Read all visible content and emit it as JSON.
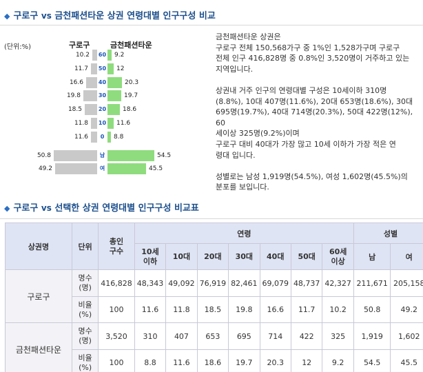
{
  "section1": {
    "title_a": "구로구",
    "title_vs": "vs",
    "title_b": "금천패션타운 상권 연령대별 인구구성 비교"
  },
  "pyramid": {
    "unit_label": "(단위:%)",
    "left_label": "구로구",
    "right_label": "금천패션타운",
    "colors": {
      "left": "#c9c9c9",
      "right": "#8fdc7e",
      "category": "#1a55b8"
    },
    "rows": [
      {
        "cat": "60",
        "left": "10.2",
        "right": "9.2"
      },
      {
        "cat": "50",
        "left": "11.7",
        "right": "12"
      },
      {
        "cat": "40",
        "left": "16.6",
        "right": "20.3"
      },
      {
        "cat": "30",
        "left": "19.8",
        "right": "19.7"
      },
      {
        "cat": "20",
        "left": "18.5",
        "right": "18.6"
      },
      {
        "cat": "10",
        "left": "11.8",
        "right": "11.6"
      },
      {
        "cat": "0",
        "left": "11.6",
        "right": "8.8"
      },
      {
        "cat": "남",
        "left": "50.8",
        "right": "54.5"
      },
      {
        "cat": "여",
        "left": "49.2",
        "right": "45.5"
      }
    ]
  },
  "description": {
    "lines": [
      "금천패션타운 상권은",
      "구로구 전체 150,568가구 중 1%인 1,528가구며 구로구",
      "전체 인구 416,828명 중 0.8%인 3,520명이 거주하고 있는",
      "지역입니다.",
      "",
      "상권내 거주 인구의 연령대별 구성은 10세이하 310명",
      "(8.8%), 10대 407명(11.6%), 20대 653명(18.6%), 30대",
      "695명(19.7%), 40대 714명(20.3%), 50대 422명(12%), 60",
      "세이상 325명(9.2%)이며",
      "구로구 대비 40대가 가장 많고 10세 이하가 가장 적은 연",
      "령대 입니다.",
      "",
      "성별로는 남성 1,919명(54.5%), 여성 1,602명(45.5%)의",
      "분포를 보입니다."
    ]
  },
  "section2": {
    "title_a": "구로구",
    "title_vs": "vs",
    "title_b": "선택한 상권 연령대별 인구구성 비교표"
  },
  "table": {
    "head": {
      "area": "상권명",
      "unit": "단위",
      "total_1": "총인",
      "total_2": "구수",
      "age_group": "연령",
      "sex_group": "성별"
    },
    "ages": [
      [
        "10세",
        "이하"
      ],
      [
        "10대"
      ],
      [
        "20대"
      ],
      [
        "30대"
      ],
      [
        "40대"
      ],
      [
        "50대"
      ],
      [
        "60세",
        "이상"
      ]
    ],
    "sexes": [
      "남",
      "여"
    ],
    "regions": [
      {
        "name": "구로구",
        "count_label": [
          "명수",
          "(명)"
        ],
        "ratio_label": [
          "비율",
          "(%)"
        ],
        "counts": [
          "416,828",
          "48,343",
          "49,092",
          "76,919",
          "82,461",
          "69,079",
          "48,737",
          "42,327",
          "211,671",
          "205,158"
        ],
        "ratios": [
          "100",
          "11.6",
          "11.8",
          "18.5",
          "19.8",
          "16.6",
          "11.7",
          "10.2",
          "50.8",
          "49.2"
        ]
      },
      {
        "name": "금천패션타운",
        "count_label": [
          "명수",
          "(명)"
        ],
        "ratio_label": [
          "비율",
          "(%)"
        ],
        "counts": [
          "3,520",
          "310",
          "407",
          "653",
          "695",
          "714",
          "422",
          "325",
          "1,919",
          "1,602"
        ],
        "ratios": [
          "100",
          "8.8",
          "11.6",
          "18.6",
          "19.7",
          "20.3",
          "12",
          "9.2",
          "54.5",
          "45.5"
        ]
      }
    ]
  }
}
